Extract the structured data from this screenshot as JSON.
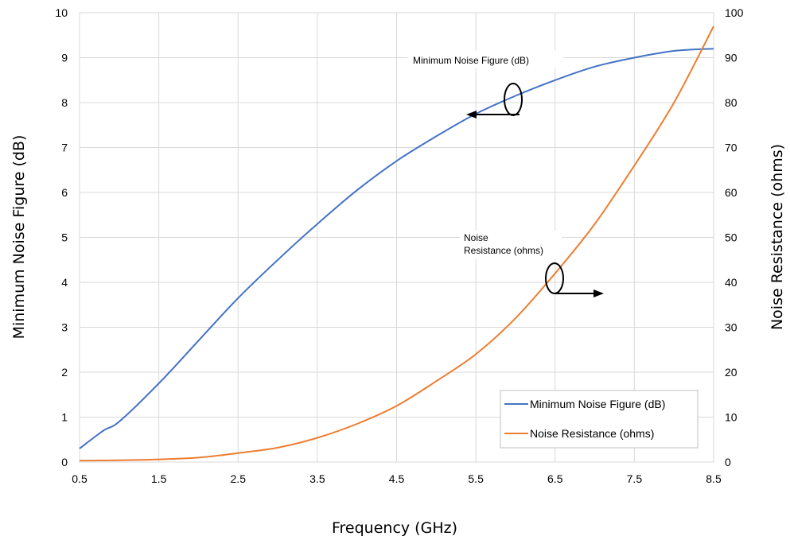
{
  "chart_data": {
    "type": "line",
    "title": "",
    "xlabel": "Frequency (GHz)",
    "ylabel": "Minimum Noise Figure (dB)",
    "y2label": "Noise Resistance (ohms)",
    "xlim": [
      0.5,
      8.5
    ],
    "ylim": [
      0,
      10
    ],
    "y2lim": [
      0,
      100
    ],
    "x_ticks": [
      "0.5",
      "1.5",
      "2.5",
      "3.5",
      "4.5",
      "5.5",
      "6.5",
      "7.5",
      "8.5"
    ],
    "y_ticks": [
      "0",
      "1",
      "2",
      "3",
      "4",
      "5",
      "6",
      "7",
      "8",
      "9",
      "10"
    ],
    "y2_ticks": [
      "0",
      "10",
      "20",
      "30",
      "40",
      "50",
      "60",
      "70",
      "80",
      "90",
      "100"
    ],
    "grid": true,
    "legend_position": "bottom-right",
    "series": [
      {
        "name": "Minimum Noise Figure (dB)",
        "axis": "left",
        "color": "#4472C4",
        "x": [
          0.5,
          0.8,
          1.0,
          1.5,
          2.0,
          2.5,
          3.0,
          3.5,
          4.0,
          4.5,
          5.0,
          5.5,
          6.0,
          6.5,
          7.0,
          7.5,
          8.0,
          8.5
        ],
        "y": [
          0.3,
          0.7,
          0.9,
          1.75,
          2.7,
          3.65,
          4.5,
          5.3,
          6.05,
          6.7,
          7.25,
          7.75,
          8.15,
          8.5,
          8.8,
          9.0,
          9.15,
          9.2
        ]
      },
      {
        "name": "Noise Resistance (ohms)",
        "axis": "right",
        "color": "#ED7D31",
        "x": [
          0.5,
          1.0,
          1.5,
          2.0,
          2.5,
          3.0,
          3.5,
          4.0,
          4.5,
          5.0,
          5.5,
          6.0,
          6.5,
          7.0,
          7.5,
          8.0,
          8.5
        ],
        "y": [
          0.3,
          0.4,
          0.6,
          1.0,
          2.0,
          3.2,
          5.4,
          8.5,
          12.5,
          18.0,
          24.0,
          32.0,
          42.0,
          53.0,
          66.0,
          80.0,
          97.0
        ]
      }
    ],
    "annotations": [
      {
        "text": "Minimum Noise Figure (dB)",
        "points_to": "left axis"
      },
      {
        "text": "Noise",
        "text2": "Resistance (ohms)",
        "points_to": "right axis"
      }
    ]
  }
}
